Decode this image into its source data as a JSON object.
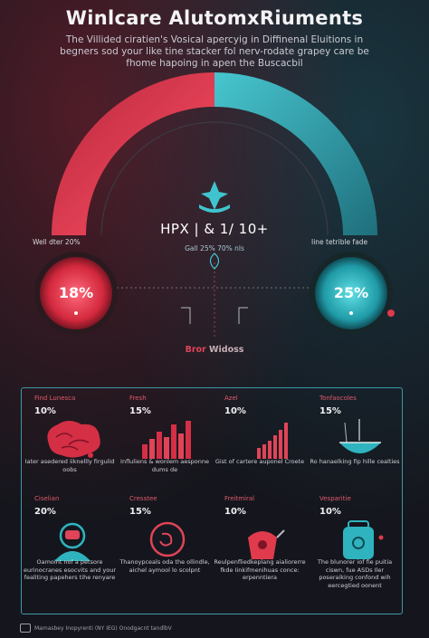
{
  "header": {
    "title": "Winlcare AlutomxRiuments",
    "subtitle": "The Villided ciratien's Vosical apercyig in Diffinenal Eluitions in begners sod your like tine stacker fol nerv-rodate grapey care be fhome hapoing in apen the Buscacbil"
  },
  "gauge": {
    "center_value": "HPX | & 1/ 10+",
    "center_sub": "Gall 25%    70% nls",
    "left_label": "Well dter 20%",
    "right_label": "Iine tetrible fade",
    "left_pct": "18%",
    "right_pct": "25%",
    "mid_label_a": "Bror ",
    "mid_label_b": "Widoss",
    "left_color": "#e03a4d",
    "right_color": "#2fb3be"
  },
  "cards": [
    {
      "title": "Find Lunesca",
      "pct": "10%",
      "text": "Iater asedered iiknellly firgulid oobs",
      "icon": "brain-icon"
    },
    {
      "title": "Fresh",
      "pct": "15%",
      "text": "Influliens & wonlem aesponne dums de",
      "icon": "bar-chart-icon"
    },
    {
      "title": "Azel",
      "pct": "10%",
      "text": "Gist of cartere auponel Croete",
      "icon": "growth-chart-icon"
    },
    {
      "title": "Tonfaocoles",
      "pct": "15%",
      "text": "Ro hanaelking fip hille cealties",
      "icon": "bowl-icon"
    },
    {
      "title": "Ciselian",
      "pct": "20%",
      "text": "Oamoint nof a petsore eurinocranes esocvits and your fealiting papehers tihe renyare",
      "icon": "astronaut-icon"
    },
    {
      "title": "Cresstee",
      "pct": "15%",
      "text": "Thanoypceals oda the ollindle, aichel aymool lo scolpnt",
      "icon": "circle-icon"
    },
    {
      "title": "Freitmiral",
      "pct": "10%",
      "text": "Reulpenfliedkeplang aialiorerre fkde Iinkifmenihuas conce: erpenntiera",
      "icon": "blender-icon"
    },
    {
      "title": "Vesparitie",
      "pct": "10%",
      "text": "The blunorer iof fie puitia ciswn, fue ASDs Iler poseraiking confond wih eercegtied oonent",
      "icon": "backpack-icon"
    }
  ],
  "footer": {
    "text": "Mamasbey Inopyrenti (NY IEG) Onodgacnt tandlbV"
  }
}
